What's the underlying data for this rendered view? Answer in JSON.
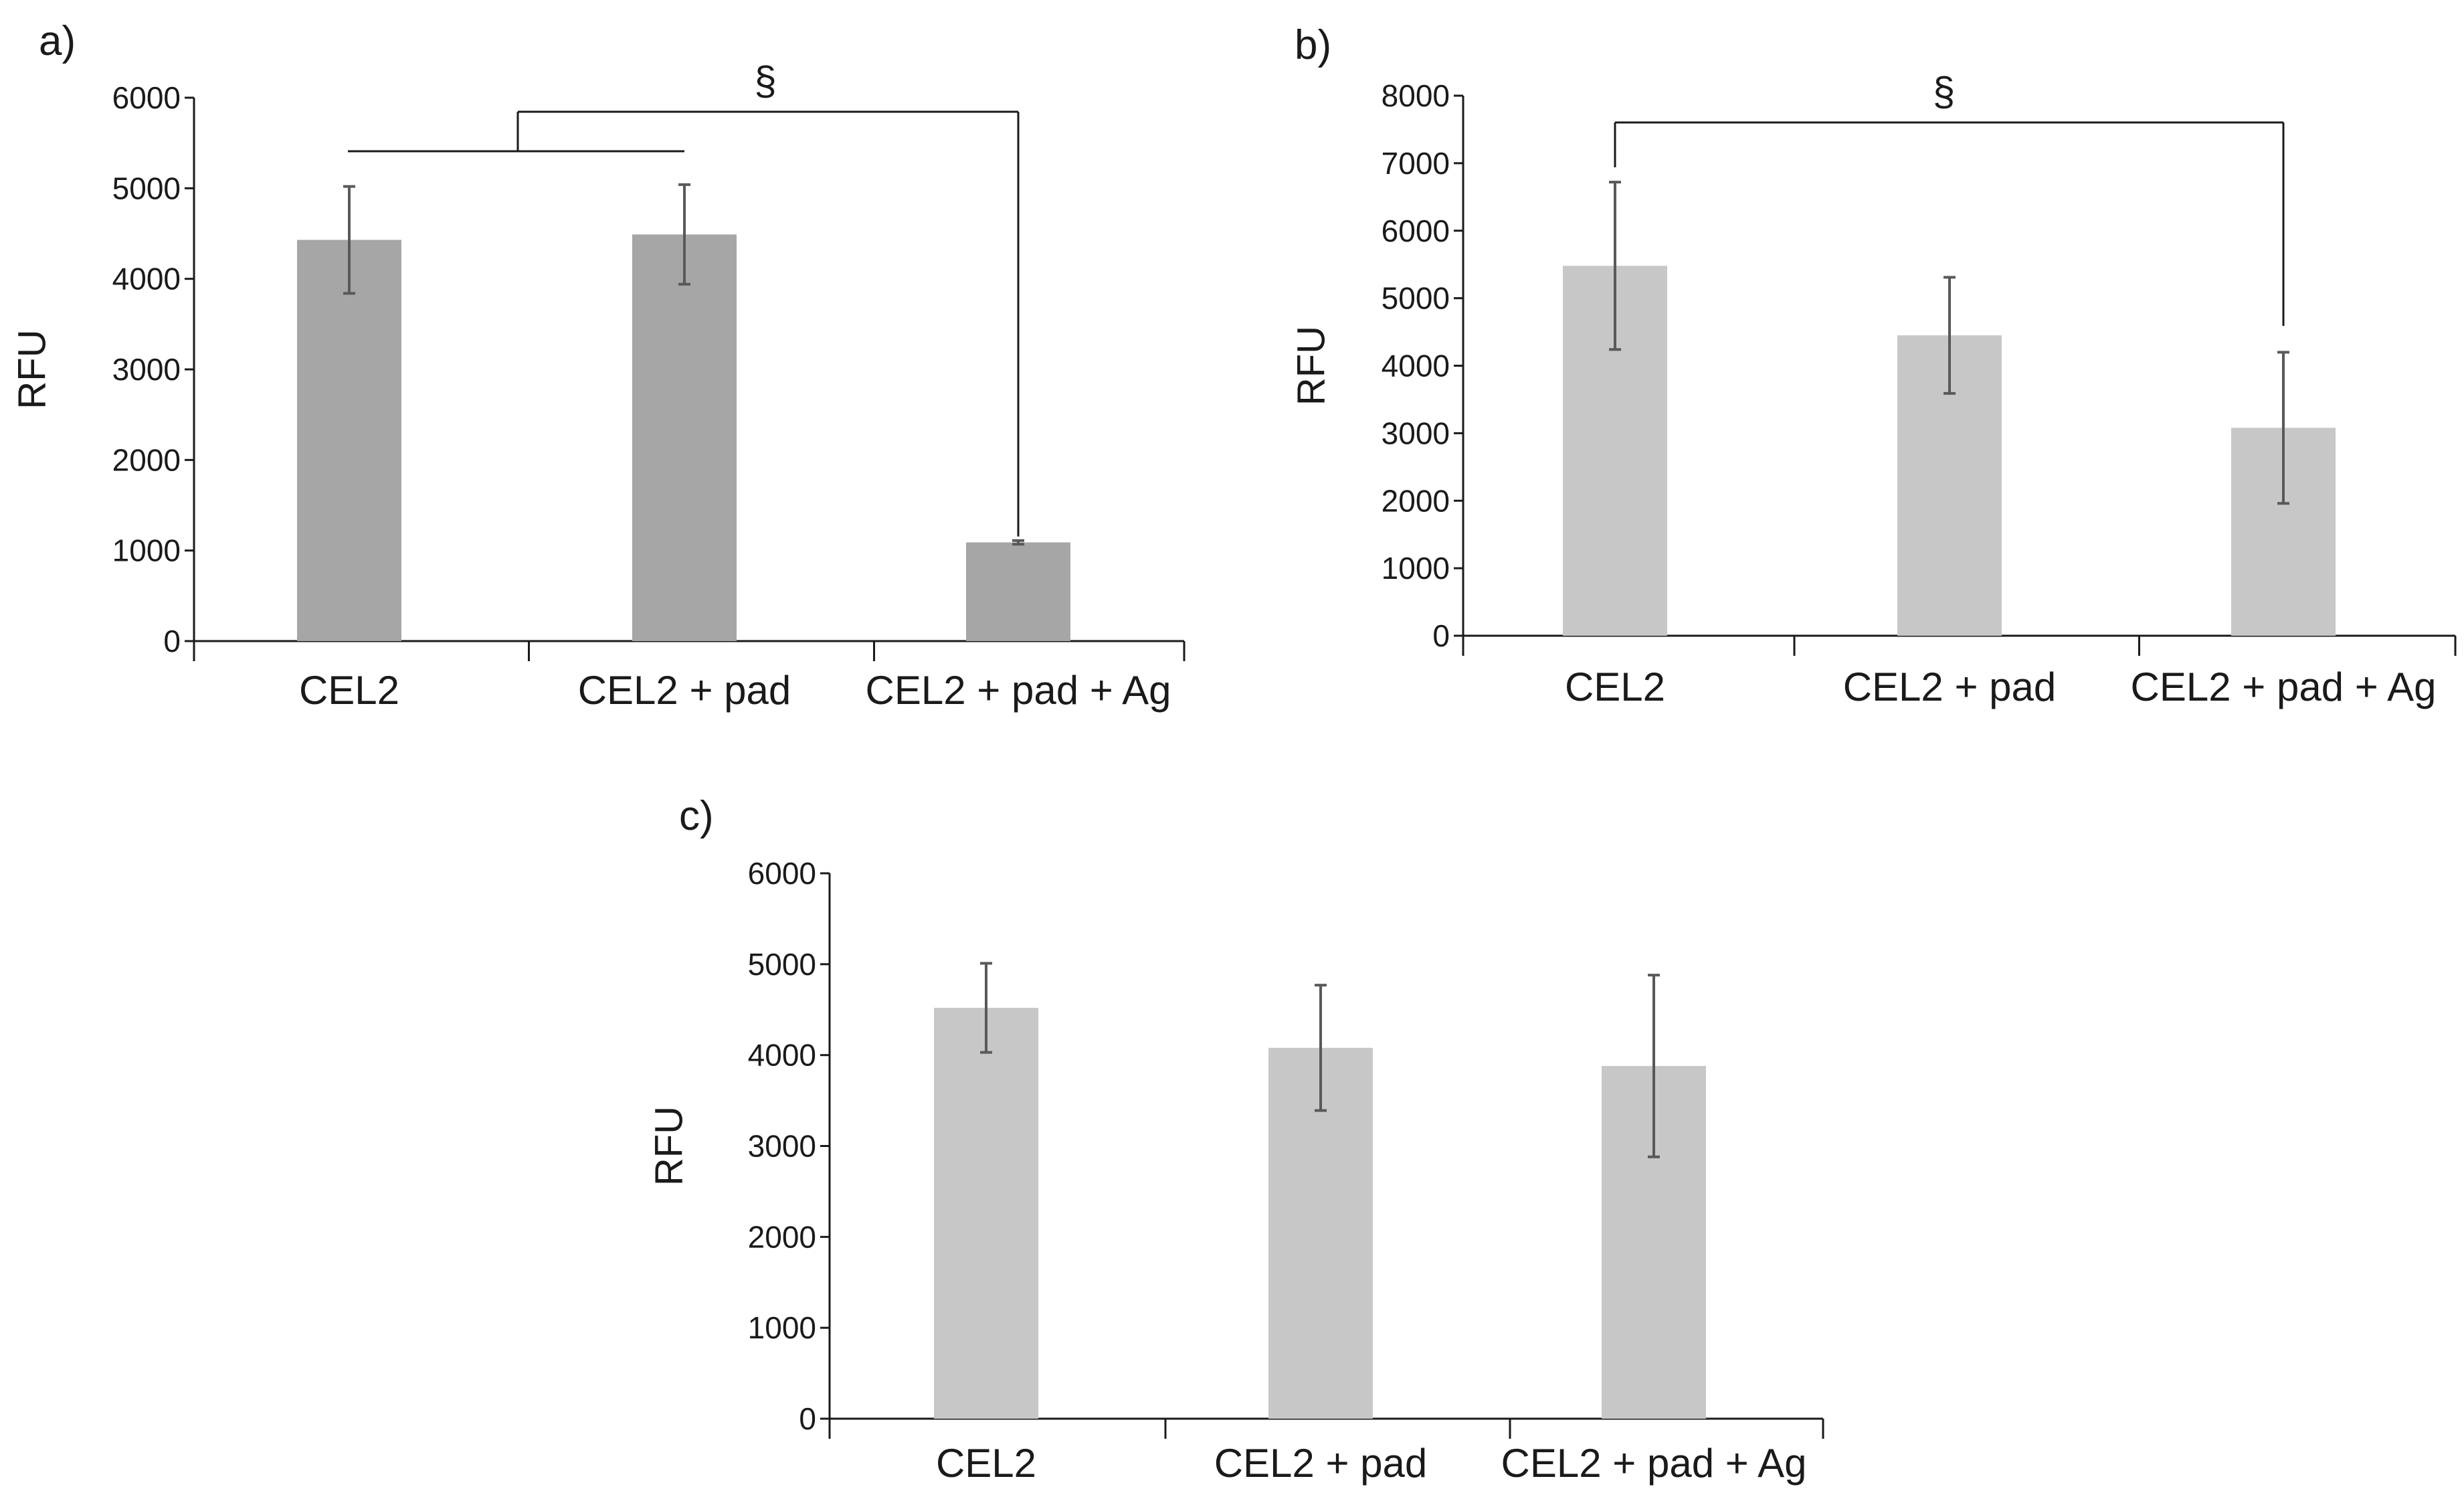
{
  "chart_data": [
    {
      "panel": "a)",
      "type": "bar",
      "ylabel": "RFU",
      "xlabel": "",
      "ylim": [
        0,
        6000
      ],
      "yticks": [
        0,
        1000,
        2000,
        3000,
        4000,
        5000,
        6000
      ],
      "categories": [
        "CEL2",
        "CEL2 + pad",
        "CEL2 + pad + Ag"
      ],
      "values": [
        4430,
        4490,
        1090
      ],
      "errors": [
        590,
        550,
        20
      ],
      "bar_color": "#a6a6a6",
      "significance": {
        "symbol": "§",
        "description": "CEL2 and CEL2 + pad (grouped) vs CEL2 + pad + Ag"
      }
    },
    {
      "panel": "b)",
      "type": "bar",
      "ylabel": "RFU",
      "xlabel": "",
      "ylim": [
        0,
        8000
      ],
      "yticks": [
        0,
        1000,
        2000,
        3000,
        4000,
        5000,
        6000,
        7000,
        8000
      ],
      "categories": [
        "CEL2",
        "CEL2 + pad",
        "CEL2 + pad + Ag"
      ],
      "values": [
        5480,
        4450,
        3080
      ],
      "errors": [
        1240,
        860,
        1120
      ],
      "bar_color": "#c7c7c7",
      "significance": {
        "symbol": "§",
        "description": "CEL2 vs CEL2 + pad + Ag"
      }
    },
    {
      "panel": "c)",
      "type": "bar",
      "ylabel": "RFU",
      "xlabel": "",
      "ylim": [
        0,
        6000
      ],
      "yticks": [
        0,
        1000,
        2000,
        3000,
        4000,
        5000,
        6000
      ],
      "categories": [
        "CEL2",
        "CEL2 + pad",
        "CEL2 + pad + Ag"
      ],
      "values": [
        4520,
        4080,
        3880
      ],
      "errors": [
        490,
        690,
        1000
      ],
      "bar_color": "#c7c7c7",
      "significance": null
    }
  ],
  "colors": {
    "axis": "#1a1a1a",
    "error_bar": "#595959",
    "bracket": "#1a1a1a"
  }
}
